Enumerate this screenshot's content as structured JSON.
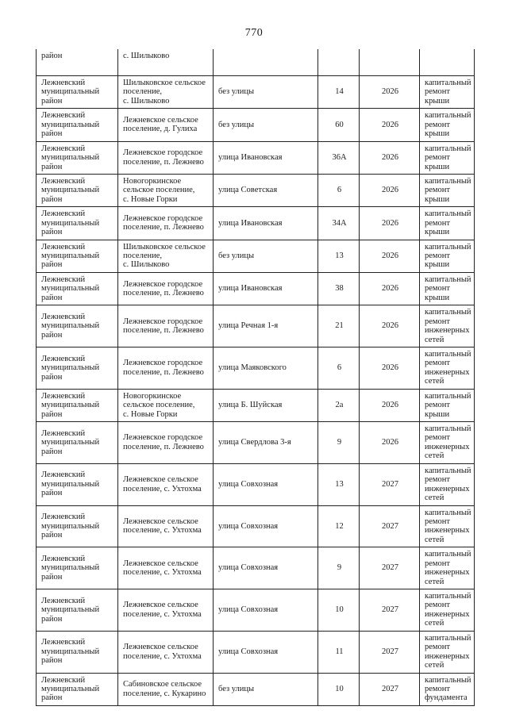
{
  "page": {
    "number": "770"
  },
  "table": {
    "columns": [
      "district",
      "settlement",
      "street",
      "house",
      "year",
      "work"
    ],
    "carryover_row": {
      "district": "район",
      "settlement": "с. Шилыково",
      "street": "",
      "house": "",
      "year": "",
      "work": ""
    },
    "rows": [
      {
        "district": "Лежневский\nмуниципальный\nрайон",
        "settlement": "Шилыковское сельское\nпоселение,\nс. Шилыково",
        "street": "без улицы",
        "house": "14",
        "year": "2026",
        "work": "капитальный\nремонт крыши"
      },
      {
        "district": "Лежневский\nмуниципальный\nрайон",
        "settlement": "Лежневское сельское\nпоселение, д. Гулиха",
        "street": "без улицы",
        "house": "60",
        "year": "2026",
        "work": "капитальный\nремонт крыши"
      },
      {
        "district": "Лежневский\nмуниципальный\nрайон",
        "settlement": "Лежневское городское\nпоселение, п. Лежнево",
        "street": "улица Ивановская",
        "house": "36А",
        "year": "2026",
        "work": "капитальный\nремонт крыши"
      },
      {
        "district": "Лежневский\nмуниципальный\nрайон",
        "settlement": "Новогоркинское\nсельское поселение,\nс. Новые Горки",
        "street": "улица Советская",
        "house": "6",
        "year": "2026",
        "work": "капитальный\nремонт крыши"
      },
      {
        "district": "Лежневский\nмуниципальный\nрайон",
        "settlement": "Лежневское городское\nпоселение, п. Лежнево",
        "street": "улица Ивановская",
        "house": "34А",
        "year": "2026",
        "work": "капитальный\nремонт крыши"
      },
      {
        "district": "Лежневский\nмуниципальный\nрайон",
        "settlement": "Шилыковское сельское\nпоселение,\nс. Шилыково",
        "street": "без улицы",
        "house": "13",
        "year": "2026",
        "work": "капитальный\nремонт крыши"
      },
      {
        "district": "Лежневский\nмуниципальный\nрайон",
        "settlement": "Лежневское городское\nпоселение, п. Лежнево",
        "street": "улица Ивановская",
        "house": "38",
        "year": "2026",
        "work": "капитальный\nремонт крыши"
      },
      {
        "district": "Лежневский\nмуниципальный\nрайон",
        "settlement": "Лежневское городское\nпоселение, п. Лежнево",
        "street": "улица Речная 1-я",
        "house": "21",
        "year": "2026",
        "work": "капитальный\nремонт\nинженерных\nсетей"
      },
      {
        "district": "Лежневский\nмуниципальный\nрайон",
        "settlement": "Лежневское городское\nпоселение, п. Лежнево",
        "street": "улица Маяковского",
        "house": "6",
        "year": "2026",
        "work": "капитальный\nремонт\nинженерных\nсетей"
      },
      {
        "district": "Лежневский\nмуниципальный\nрайон",
        "settlement": "Новогоркинское\nсельское поселение,\nс. Новые Горки",
        "street": "улица Б. Шуйская",
        "house": "2а",
        "year": "2026",
        "work": "капитальный\nремонт крыши"
      },
      {
        "district": "Лежневский\nмуниципальный\nрайон",
        "settlement": "Лежневское городское\nпоселение, п. Лежнево",
        "street": "улица Свердлова 3-я",
        "house": "9",
        "year": "2026",
        "work": "капитальный\nремонт\nинженерных\nсетей"
      },
      {
        "district": "Лежневский\nмуниципальный\nрайон",
        "settlement": "Лежневское сельское\nпоселение, с. Ухтохма",
        "street": "улица Совхозная",
        "house": "13",
        "year": "2027",
        "work": "капитальный\nремонт\nинженерных\nсетей"
      },
      {
        "district": "Лежневский\nмуниципальный\nрайон",
        "settlement": "Лежневское сельское\nпоселение, с. Ухтохма",
        "street": "улица Совхозная",
        "house": "12",
        "year": "2027",
        "work": "капитальный\nремонт\nинженерных\nсетей"
      },
      {
        "district": "Лежневский\nмуниципальный\nрайон",
        "settlement": "Лежневское сельское\nпоселение, с. Ухтохма",
        "street": "улица Совхозная",
        "house": "9",
        "year": "2027",
        "work": "капитальный\nремонт\nинженерных\nсетей"
      },
      {
        "district": "Лежневский\nмуниципальный\nрайон",
        "settlement": "Лежневское сельское\nпоселение, с. Ухтохма",
        "street": "улица Совхозная",
        "house": "10",
        "year": "2027",
        "work": "капитальный\nремонт\nинженерных\nсетей"
      },
      {
        "district": "Лежневский\nмуниципальный\nрайон",
        "settlement": "Лежневское сельское\nпоселение, с. Ухтохма",
        "street": "улица Совхозная",
        "house": "11",
        "year": "2027",
        "work": "капитальный\nремонт\nинженерных\nсетей"
      },
      {
        "district": "Лежневский\nмуниципальный\nрайон",
        "settlement": "Сабиновское сельское\nпоселение, с. Кукарино",
        "street": "без улицы",
        "house": "10",
        "year": "2027",
        "work": "капитальный\nремонт\nфундамента"
      }
    ]
  }
}
